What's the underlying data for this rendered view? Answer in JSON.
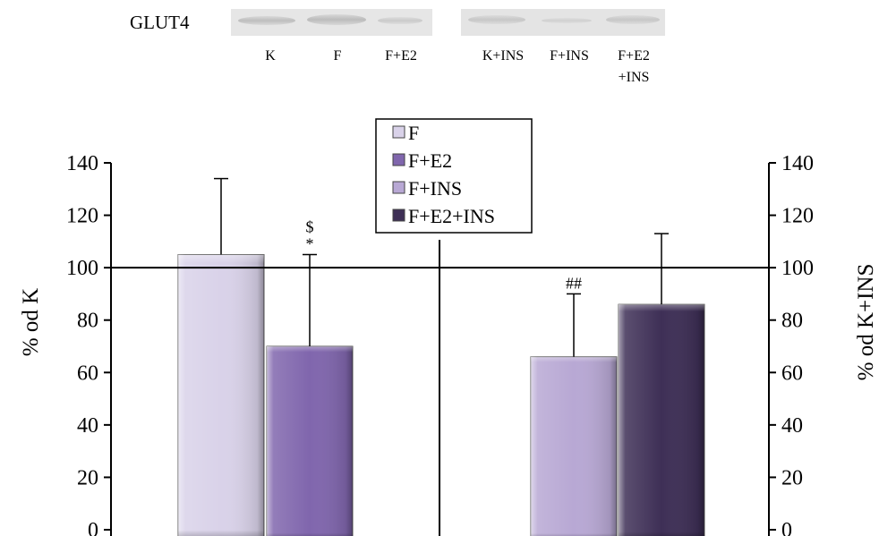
{
  "blot": {
    "title": "GLUT4",
    "lanes": [
      "K",
      "F",
      "F+E2",
      "K+INS",
      "F+INS"
    ],
    "lane_last_line1": "F+E2",
    "lane_last_line2": "+INS"
  },
  "colors": {
    "F": "#d9d2e9",
    "F+E2": "#8066ad",
    "F+INS": "#b8a8d4",
    "F+E2+INS": "#3e2f56"
  },
  "chart_data": {
    "type": "bar",
    "categories": [
      "F",
      "F+E2",
      "F+INS",
      "F+E2+INS"
    ],
    "values": [
      105,
      70,
      66,
      86
    ],
    "error_upper": [
      134,
      105,
      90,
      113
    ],
    "annotations": [
      {
        "bar": "F+E2",
        "lines": [
          "$",
          "*"
        ]
      },
      {
        "bar": "F+INS",
        "lines": [
          "##"
        ]
      }
    ],
    "reference_line": 100,
    "ylabel_left": "% od K",
    "ylabel_right": "% od K+INS",
    "ylim": [
      0,
      140
    ],
    "yticks": [
      "0",
      "20",
      "40",
      "60",
      "80",
      "100",
      "120",
      "140"
    ],
    "legend": [
      "F",
      "F+E2",
      "F+INS",
      "F+E2+INS"
    ],
    "legend_position": "top-center",
    "grid": false
  }
}
